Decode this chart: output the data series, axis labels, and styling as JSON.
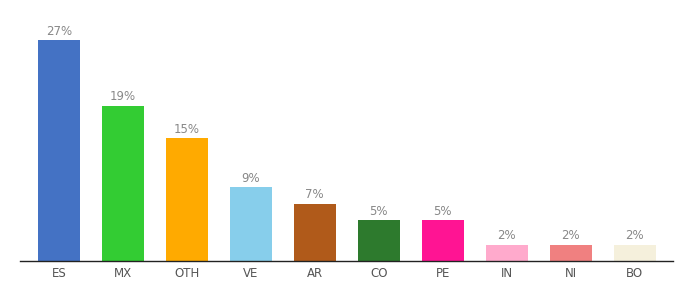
{
  "categories": [
    "ES",
    "MX",
    "OTH",
    "VE",
    "AR",
    "CO",
    "PE",
    "IN",
    "NI",
    "BO"
  ],
  "values": [
    27,
    19,
    15,
    9,
    7,
    5,
    5,
    2,
    2,
    2
  ],
  "bar_colors": [
    "#4472c4",
    "#33cc33",
    "#ffaa00",
    "#87ceeb",
    "#b05a1a",
    "#2d7a2d",
    "#ff1493",
    "#ffaacc",
    "#f08080",
    "#f5f0dc"
  ],
  "ylim": [
    0,
    29
  ],
  "background_color": "#ffffff",
  "label_fontsize": 8.5,
  "tick_fontsize": 8.5,
  "label_color": "#888888"
}
